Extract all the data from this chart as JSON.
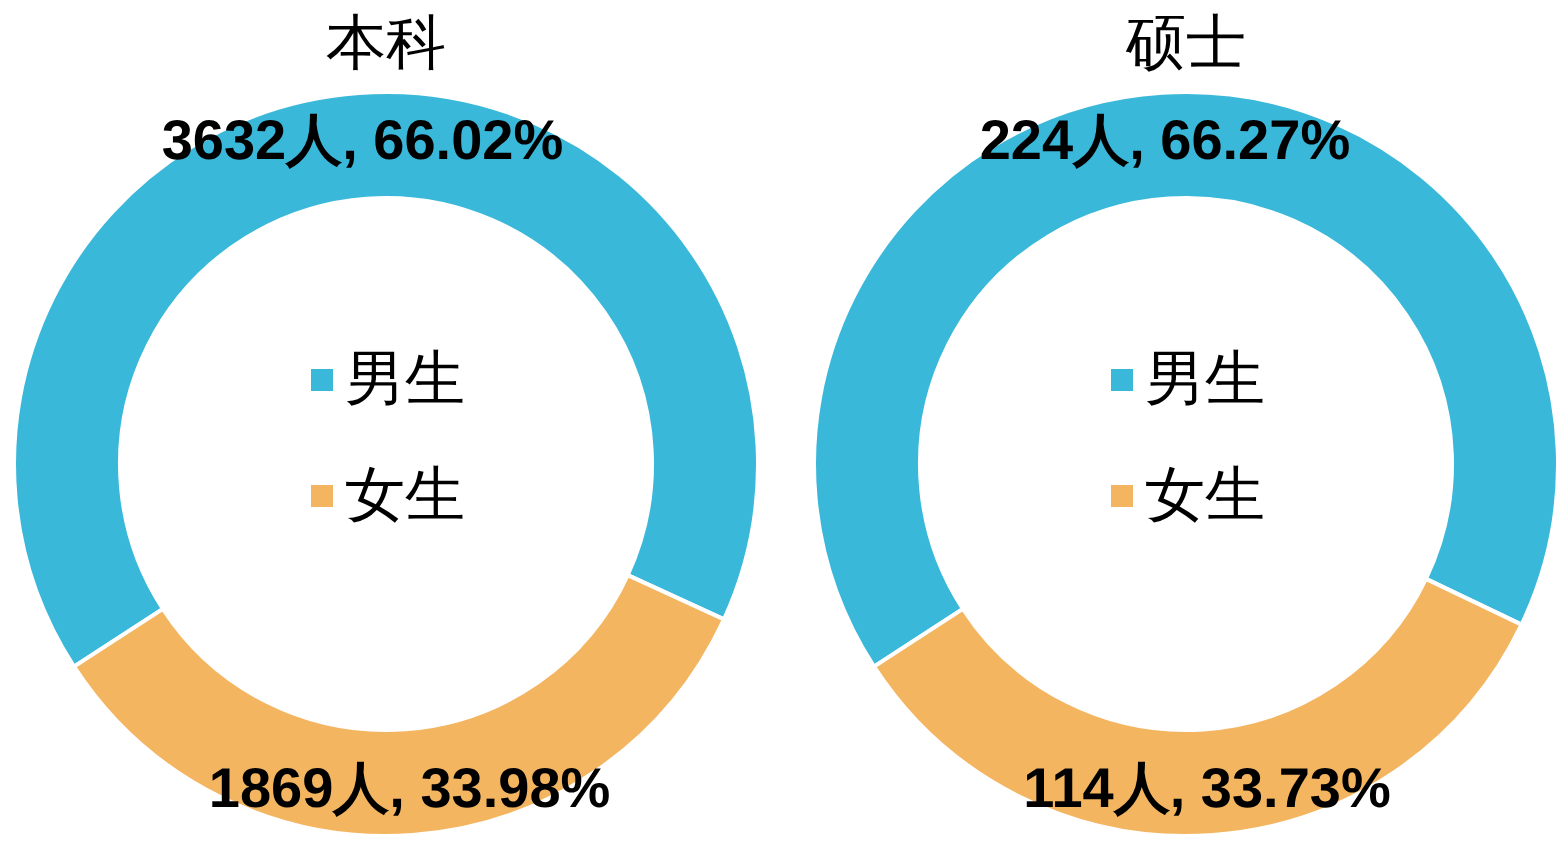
{
  "chart_data": [
    {
      "type": "donut",
      "title": "本科",
      "categories": [
        "男生",
        "女生"
      ],
      "values": [
        3632,
        1869
      ],
      "colors": [
        "#3ab8da",
        "#f4b560"
      ],
      "value_labels": [
        "3632人, 66.02%",
        "1869人, 33.98%"
      ],
      "legend": "center"
    },
    {
      "type": "donut",
      "title": "硕士",
      "categories": [
        "男生",
        "女生"
      ],
      "values": [
        224,
        114
      ],
      "colors": [
        "#3ab8da",
        "#f4b560"
      ],
      "value_labels": [
        "224人, 66.27%",
        "114人, 33.73%"
      ],
      "legend": "center"
    }
  ]
}
